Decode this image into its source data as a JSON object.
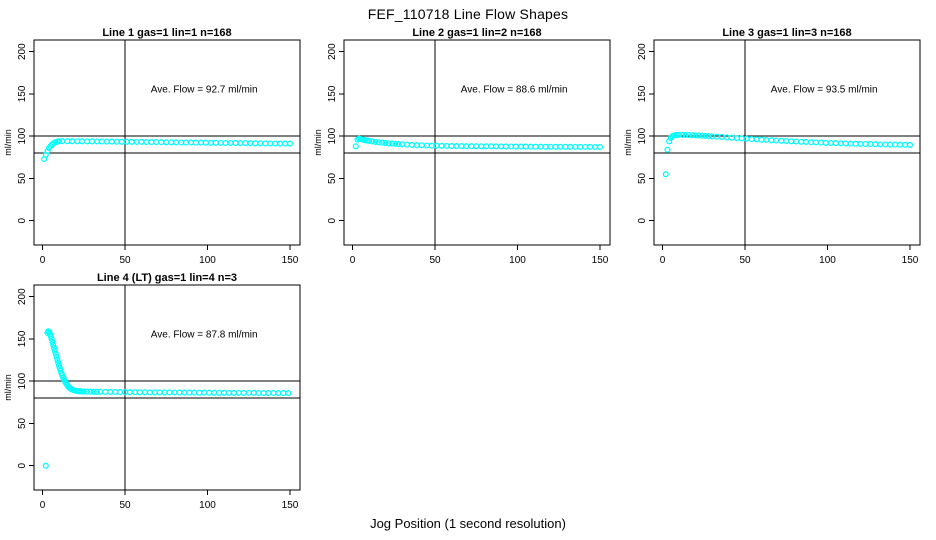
{
  "title": "FEF_110718  Line Flow Shapes",
  "xlabel": "Jog Position (1 second resolution)",
  "colors": {
    "marker": "#00FFFF",
    "axis": "#000000",
    "background": "#FFFFFF"
  },
  "chart_data": [
    {
      "type": "scatter",
      "title": "Line 1 gas=1 lin=1 n=168",
      "annotation": "Ave. Flow =  92.7  ml/min",
      "ave_flow_ml_min": 92.7,
      "ylabel": "ml/min",
      "xlim": [
        0,
        150
      ],
      "ylim": [
        0,
        200
      ],
      "xticks": [
        "0",
        "50",
        "100",
        "150"
      ],
      "yticks": [
        "0",
        "50",
        "100",
        "150",
        "200"
      ],
      "vline_x": 50,
      "hlines_y": [
        80,
        100
      ],
      "grid": false,
      "points": [
        [
          1,
          73
        ],
        [
          2,
          78
        ],
        [
          3,
          82.5
        ],
        [
          4,
          86
        ],
        [
          5,
          88.5
        ],
        [
          6,
          90.5
        ],
        [
          7,
          92
        ],
        [
          8,
          93
        ],
        [
          9,
          93.6
        ],
        [
          10,
          94
        ],
        [
          12,
          94.2
        ],
        [
          15,
          94.1
        ],
        [
          18,
          94.1
        ],
        [
          21,
          94
        ],
        [
          24,
          94
        ],
        [
          27,
          93.9
        ],
        [
          30,
          93.8
        ],
        [
          33,
          93.8
        ],
        [
          36,
          93.7
        ],
        [
          39,
          93.6
        ],
        [
          42,
          93.6
        ],
        [
          45,
          93.5
        ],
        [
          48,
          93.4
        ],
        [
          51,
          93.4
        ],
        [
          54,
          93.3
        ],
        [
          57,
          93.2
        ],
        [
          60,
          93.2
        ],
        [
          63,
          93.1
        ],
        [
          66,
          93
        ],
        [
          69,
          93
        ],
        [
          72,
          92.9
        ],
        [
          75,
          92.8
        ],
        [
          78,
          92.8
        ],
        [
          81,
          92.7
        ],
        [
          84,
          92.6
        ],
        [
          87,
          92.6
        ],
        [
          90,
          92.5
        ],
        [
          93,
          92.4
        ],
        [
          96,
          92.4
        ],
        [
          99,
          92.3
        ],
        [
          102,
          92.2
        ],
        [
          105,
          92.2
        ],
        [
          108,
          92.1
        ],
        [
          111,
          92
        ],
        [
          114,
          92
        ],
        [
          117,
          91.9
        ],
        [
          120,
          91.8
        ],
        [
          123,
          91.8
        ],
        [
          126,
          91.7
        ],
        [
          129,
          91.6
        ],
        [
          132,
          91.6
        ],
        [
          135,
          91.5
        ],
        [
          138,
          91.4
        ],
        [
          141,
          91.4
        ],
        [
          144,
          91.3
        ],
        [
          147,
          91.2
        ],
        [
          150,
          91.2
        ]
      ]
    },
    {
      "type": "scatter",
      "title": "Line 2 gas=1 lin=2 n=168",
      "annotation": "Ave. Flow =  88.6  ml/min",
      "ave_flow_ml_min": 88.6,
      "ylabel": "ml/min",
      "xlim": [
        0,
        150
      ],
      "ylim": [
        0,
        200
      ],
      "xticks": [
        "0",
        "50",
        "100",
        "150"
      ],
      "yticks": [
        "0",
        "50",
        "100",
        "150",
        "200"
      ],
      "vline_x": 50,
      "hlines_y": [
        80,
        100
      ],
      "grid": false,
      "points": [
        [
          2,
          88
        ],
        [
          3,
          96
        ],
        [
          4,
          97
        ],
        [
          5,
          96.6
        ],
        [
          6,
          96.1
        ],
        [
          7,
          95.6
        ],
        [
          8,
          95.2
        ],
        [
          9,
          94.8
        ],
        [
          10,
          94.4
        ],
        [
          12,
          93.8
        ],
        [
          14,
          93.2
        ],
        [
          16,
          92.7
        ],
        [
          18,
          92.3
        ],
        [
          20,
          91.9
        ],
        [
          22,
          91.5
        ],
        [
          24,
          91.2
        ],
        [
          26,
          90.9
        ],
        [
          28,
          90.6
        ],
        [
          30,
          90.4
        ],
        [
          33,
          90
        ],
        [
          36,
          89.7
        ],
        [
          39,
          89.4
        ],
        [
          42,
          89.2
        ],
        [
          45,
          89
        ],
        [
          48,
          88.8
        ],
        [
          51,
          88.7
        ],
        [
          54,
          88.6
        ],
        [
          57,
          88.5
        ],
        [
          60,
          88.4
        ],
        [
          63,
          88.3
        ],
        [
          66,
          88.3
        ],
        [
          69,
          88.2
        ],
        [
          72,
          88.2
        ],
        [
          75,
          88.1
        ],
        [
          78,
          88.1
        ],
        [
          81,
          88
        ],
        [
          84,
          88
        ],
        [
          87,
          87.9
        ],
        [
          90,
          87.9
        ],
        [
          93,
          87.8
        ],
        [
          96,
          87.8
        ],
        [
          99,
          87.7
        ],
        [
          102,
          87.7
        ],
        [
          105,
          87.7
        ],
        [
          108,
          87.6
        ],
        [
          111,
          87.6
        ],
        [
          114,
          87.6
        ],
        [
          117,
          87.5
        ],
        [
          120,
          87.5
        ],
        [
          123,
          87.5
        ],
        [
          126,
          87.4
        ],
        [
          129,
          87.4
        ],
        [
          132,
          87.4
        ],
        [
          135,
          87.3
        ],
        [
          138,
          87.3
        ],
        [
          141,
          87.3
        ],
        [
          144,
          87.3
        ],
        [
          147,
          87.2
        ],
        [
          150,
          87.2
        ]
      ]
    },
    {
      "type": "scatter",
      "title": "Line 3 gas=1 lin=3 n=168",
      "annotation": "Ave. Flow =  93.5  ml/min",
      "ave_flow_ml_min": 93.5,
      "ylabel": "ml/min",
      "xlim": [
        0,
        150
      ],
      "ylim": [
        0,
        200
      ],
      "xticks": [
        "0",
        "50",
        "100",
        "150"
      ],
      "yticks": [
        "0",
        "50",
        "100",
        "150",
        "200"
      ],
      "vline_x": 50,
      "hlines_y": [
        80,
        100
      ],
      "grid": false,
      "points": [
        [
          2,
          55
        ],
        [
          3,
          84
        ],
        [
          4,
          94
        ],
        [
          5,
          98
        ],
        [
          6,
          100
        ],
        [
          7,
          100.8
        ],
        [
          8,
          101.3
        ],
        [
          9,
          101.5
        ],
        [
          10,
          101.6
        ],
        [
          12,
          101.6
        ],
        [
          14,
          101.5
        ],
        [
          16,
          101.4
        ],
        [
          18,
          101.2
        ],
        [
          20,
          101
        ],
        [
          22,
          100.8
        ],
        [
          24,
          100.6
        ],
        [
          26,
          100.3
        ],
        [
          28,
          100.1
        ],
        [
          30,
          99.8
        ],
        [
          33,
          99.4
        ],
        [
          36,
          99
        ],
        [
          39,
          98.6
        ],
        [
          42,
          98.2
        ],
        [
          45,
          97.8
        ],
        [
          48,
          97.4
        ],
        [
          51,
          97
        ],
        [
          54,
          96.6
        ],
        [
          57,
          96.3
        ],
        [
          60,
          95.9
        ],
        [
          63,
          95.6
        ],
        [
          66,
          95.2
        ],
        [
          69,
          94.9
        ],
        [
          72,
          94.6
        ],
        [
          75,
          94.3
        ],
        [
          78,
          94
        ],
        [
          81,
          93.7
        ],
        [
          84,
          93.4
        ],
        [
          87,
          93.2
        ],
        [
          90,
          92.9
        ],
        [
          93,
          92.7
        ],
        [
          96,
          92.4
        ],
        [
          99,
          92.2
        ],
        [
          102,
          92
        ],
        [
          105,
          91.8
        ],
        [
          108,
          91.6
        ],
        [
          111,
          91.4
        ],
        [
          114,
          91.2
        ],
        [
          117,
          91.1
        ],
        [
          120,
          90.9
        ],
        [
          123,
          90.8
        ],
        [
          126,
          90.6
        ],
        [
          129,
          90.5
        ],
        [
          132,
          90.3
        ],
        [
          135,
          90.2
        ],
        [
          138,
          90.1
        ],
        [
          141,
          90
        ],
        [
          144,
          89.9
        ],
        [
          147,
          89.8
        ],
        [
          150,
          89.7
        ]
      ]
    },
    {
      "type": "scatter",
      "title": "Line 4 (LT) gas=1 lin=4 n=3",
      "annotation": "Ave. Flow =  87.8  ml/min",
      "ave_flow_ml_min": 87.8,
      "ylabel": "ml/min",
      "xlim": [
        0,
        150
      ],
      "ylim": [
        0,
        200
      ],
      "xticks": [
        "0",
        "50",
        "100",
        "150"
      ],
      "yticks": [
        "0",
        "50",
        "100",
        "150",
        "200"
      ],
      "vline_x": 50,
      "hlines_y": [
        80,
        100
      ],
      "grid": false,
      "points": [
        [
          2,
          0
        ],
        [
          3,
          157
        ],
        [
          3.5,
          159
        ],
        [
          4,
          158
        ],
        [
          4.5,
          156
        ],
        [
          5,
          153
        ],
        [
          5.5,
          150
        ],
        [
          6,
          146.5
        ],
        [
          6.5,
          143
        ],
        [
          7,
          139.5
        ],
        [
          7.5,
          136
        ],
        [
          8,
          132.5
        ],
        [
          8.5,
          129
        ],
        [
          9,
          125.5
        ],
        [
          9.5,
          122
        ],
        [
          10,
          118.5
        ],
        [
          10.5,
          115.5
        ],
        [
          11,
          112.5
        ],
        [
          11.5,
          109.5
        ],
        [
          12,
          107
        ],
        [
          12.5,
          104.5
        ],
        [
          13,
          102.5
        ],
        [
          13.5,
          100.5
        ],
        [
          14,
          98.5
        ],
        [
          14.5,
          97
        ],
        [
          15,
          95.5
        ],
        [
          15.5,
          94
        ],
        [
          16,
          93
        ],
        [
          16.5,
          92
        ],
        [
          17,
          91.2
        ],
        [
          17.5,
          90.5
        ],
        [
          18,
          90
        ],
        [
          19,
          89.3
        ],
        [
          20,
          88.8
        ],
        [
          21,
          88.4
        ],
        [
          22,
          88.2
        ],
        [
          23,
          88
        ],
        [
          24,
          87.9
        ],
        [
          25,
          87.8
        ],
        [
          27,
          87.7
        ],
        [
          29,
          87.6
        ],
        [
          31,
          87.5
        ],
        [
          33,
          87.5
        ],
        [
          35,
          87.4
        ],
        [
          38,
          87.3
        ],
        [
          41,
          87.3
        ],
        [
          44,
          87.2
        ],
        [
          47,
          87.1
        ],
        [
          50,
          87.1
        ],
        [
          53,
          87
        ],
        [
          56,
          87
        ],
        [
          59,
          86.9
        ],
        [
          62,
          86.9
        ],
        [
          65,
          86.8
        ],
        [
          68,
          86.8
        ],
        [
          71,
          86.7
        ],
        [
          74,
          86.7
        ],
        [
          77,
          86.7
        ],
        [
          80,
          86.6
        ],
        [
          83,
          86.6
        ],
        [
          86,
          86.5
        ],
        [
          89,
          86.5
        ],
        [
          92,
          86.5
        ],
        [
          95,
          86.4
        ],
        [
          98,
          86.4
        ],
        [
          101,
          86.4
        ],
        [
          104,
          86.3
        ],
        [
          107,
          86.3
        ],
        [
          110,
          86.3
        ],
        [
          113,
          86.2
        ],
        [
          116,
          86.2
        ],
        [
          119,
          86.2
        ],
        [
          122,
          86.1
        ],
        [
          125,
          86.1
        ],
        [
          128,
          86.1
        ],
        [
          131,
          86
        ],
        [
          134,
          86
        ],
        [
          137,
          86
        ],
        [
          140,
          86
        ],
        [
          143,
          85.9
        ],
        [
          146,
          85.9
        ],
        [
          149,
          85.9
        ]
      ]
    }
  ]
}
